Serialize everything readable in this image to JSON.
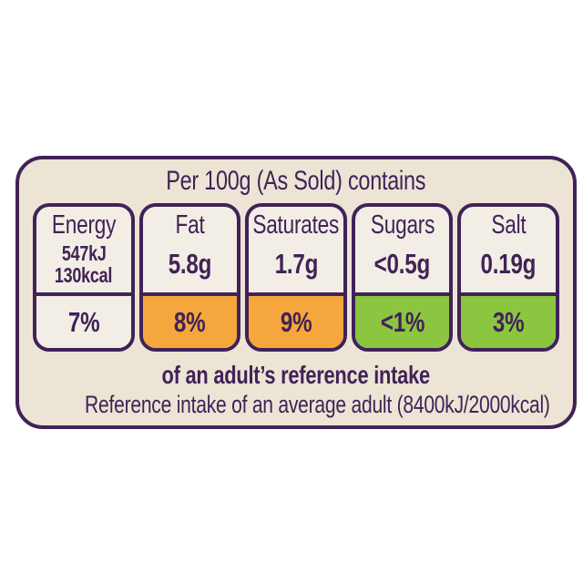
{
  "label": {
    "title": "Per 100g (As Sold) contains",
    "columns": [
      {
        "name": "Energy",
        "value_lines": [
          "547kJ",
          "130kcal"
        ],
        "percent": "7%",
        "level": "neutral"
      },
      {
        "name": "Fat",
        "value_lines": [
          "5.8g"
        ],
        "percent": "8%",
        "level": "medium"
      },
      {
        "name": "Saturates",
        "value_lines": [
          "1.7g"
        ],
        "percent": "9%",
        "level": "medium"
      },
      {
        "name": "Sugars",
        "value_lines": [
          "<0.5g"
        ],
        "percent": "<1%",
        "level": "low"
      },
      {
        "name": "Salt",
        "value_lines": [
          "0.19g"
        ],
        "percent": "3%",
        "level": "low"
      }
    ],
    "footer_bold": "of an adult’s reference intake",
    "footer_regular": "Reference intake of an average adult (8400kJ/2000kcal)",
    "colors": {
      "purple": "#412257",
      "label_bg": "#ece4d5",
      "cell_bg": "#f2eee5",
      "neutral": "#f2eee5",
      "medium": "#f5a73d",
      "low": "#8cc540"
    }
  }
}
